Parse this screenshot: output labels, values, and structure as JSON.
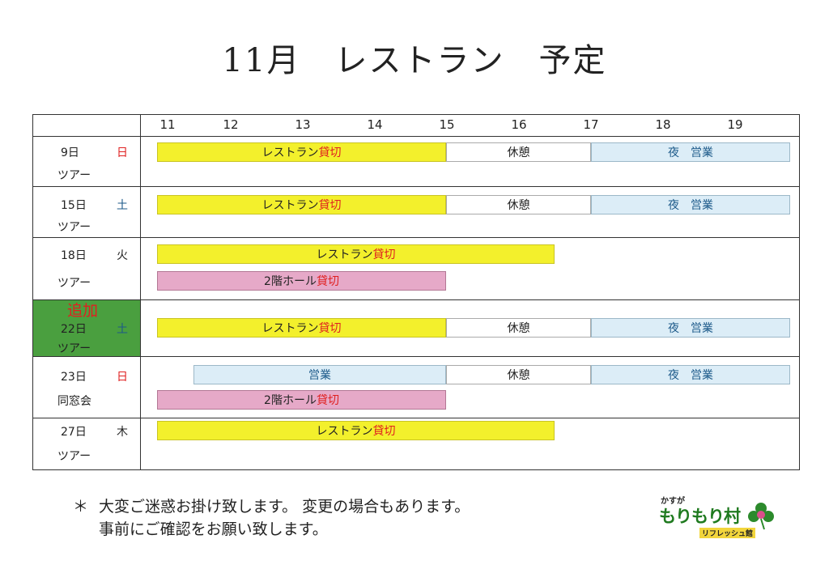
{
  "title": "11月　レストラン　予定",
  "hours": [
    "11",
    "12",
    "13",
    "14",
    "15",
    "16",
    "17",
    "18",
    "19"
  ],
  "rows": [
    {
      "day": "9日",
      "weekday": "日",
      "group": "ツアー",
      "bars": [
        {
          "pre": "レストラン",
          "red": "貸切"
        },
        {
          "pre": "休憩",
          "red": ""
        },
        {
          "pre": "夜　営業",
          "red": ""
        }
      ]
    },
    {
      "day": "15日",
      "weekday": "土",
      "group": "ツアー",
      "bars": [
        {
          "pre": "レストラン",
          "red": "貸切"
        },
        {
          "pre": "休憩",
          "red": ""
        },
        {
          "pre": "夜　営業",
          "red": ""
        }
      ]
    },
    {
      "day": "18日",
      "weekday": "火",
      "group": "ツアー",
      "bars": [
        {
          "pre": "レストラン",
          "red": "貸切"
        },
        {
          "pre": "2階ホール",
          "red": "貸切"
        }
      ]
    },
    {
      "tag": "追加",
      "day": "22日",
      "weekday": "土",
      "group": "ツアー",
      "bars": [
        {
          "pre": "レストラン",
          "red": "貸切"
        },
        {
          "pre": "休憩",
          "red": ""
        },
        {
          "pre": "夜　営業",
          "red": ""
        }
      ]
    },
    {
      "day": "23日",
      "weekday": "日",
      "group": "同窓会",
      "bars": [
        {
          "pre": "営業",
          "red": ""
        },
        {
          "pre": "休憩",
          "red": ""
        },
        {
          "pre": "夜　営業",
          "red": ""
        },
        {
          "pre": "2階ホール",
          "red": "貸切"
        }
      ]
    },
    {
      "day": "27日",
      "weekday": "木",
      "group": "ツアー",
      "bars": [
        {
          "pre": "レストラン",
          "red": "貸切"
        }
      ]
    }
  ],
  "note": {
    "star": "＊",
    "line1": "大変ご迷惑お掛け致します。 変更の場合もあります。",
    "line2": "事前にご確認をお願い致します。"
  },
  "logo": {
    "small": "かすが",
    "main": "もりもり村",
    "sub": "リフレッシュ館"
  }
}
